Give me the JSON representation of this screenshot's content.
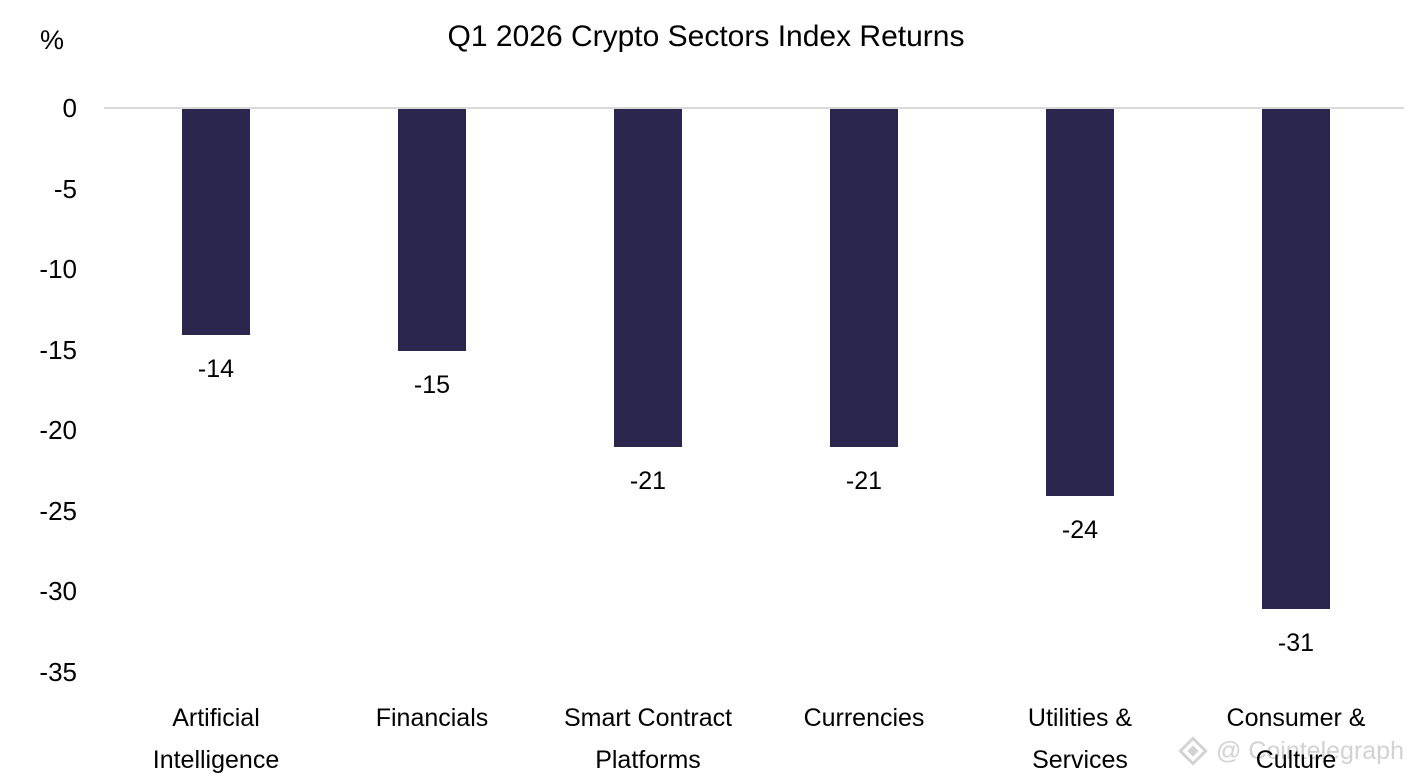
{
  "page": {
    "watermark_text": "@ Cointelegraph"
  },
  "chart_data": {
    "type": "bar",
    "title": "Q1 2026 Crypto Sectors Index Returns",
    "xlabel": "",
    "ylabel": "%",
    "categories": [
      "Artificial Intelligence",
      "Financials",
      "Smart Contract Platforms",
      "Currencies",
      "Utilities & Services",
      "Consumer & Culture"
    ],
    "category_lines": [
      [
        "Artificial",
        "Intelligence"
      ],
      [
        "Financials"
      ],
      [
        "Smart Contract",
        "Platforms"
      ],
      [
        "Currencies"
      ],
      [
        "Utilities &",
        "Services"
      ],
      [
        "Consumer &",
        "Culture"
      ]
    ],
    "values": [
      -14,
      -15,
      -21,
      -21,
      -24,
      -31
    ],
    "data_labels": [
      "-14",
      "-15",
      "-21",
      "-21",
      "-24",
      "-31"
    ],
    "y_ticks": [
      0,
      -5,
      -10,
      -15,
      -20,
      -25,
      -30,
      -35
    ],
    "ylim": [
      -35,
      0
    ],
    "grid": false,
    "legend": null,
    "background_color": "#FFFFFF",
    "bar_color": "#2B264E",
    "axis_line_color": "#D9D9D9",
    "text_color": "#000000",
    "watermark_color": "#D2D2D2"
  }
}
